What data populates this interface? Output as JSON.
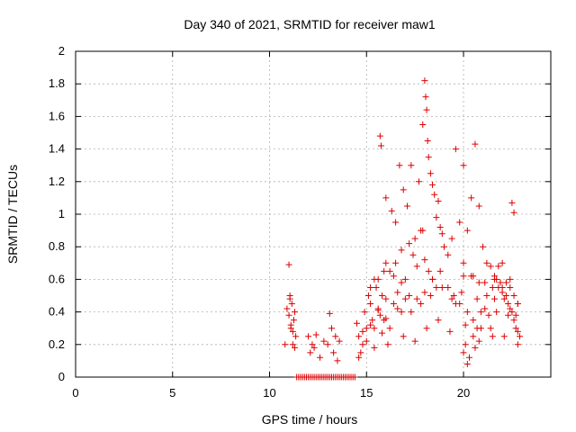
{
  "chart_data": {
    "type": "scatter",
    "title": "Day 340 of 2021, SRMTID for receiver maw1",
    "xlabel": "GPS time / hours",
    "ylabel": "SRMTID / TECUs",
    "xlim": [
      0,
      24.5
    ],
    "ylim": [
      0,
      2
    ],
    "xticks": [
      0,
      5,
      10,
      15,
      20
    ],
    "xtick_labels": [
      "0",
      "5",
      "10",
      "15",
      "20"
    ],
    "yticks": [
      0,
      0.2,
      0.4,
      0.6,
      0.8,
      1,
      1.2,
      1.4,
      1.6,
      1.8,
      2
    ],
    "ytick_labels": [
      "0",
      "0.2",
      "0.4",
      "0.6",
      "0.8",
      "1",
      "1.2",
      "1.4",
      "1.6",
      "1.8",
      "2"
    ],
    "grid": true,
    "marker": "+",
    "color": "#dd0000",
    "series": [
      {
        "name": "maw1",
        "x": [
          10.8,
          10.9,
          11.0,
          11.05,
          11.1,
          11.15,
          11.2,
          11.25,
          11.3,
          11.35,
          11.0,
          11.05,
          11.1,
          11.2,
          11.3,
          11.4,
          11.5,
          11.6,
          11.7,
          11.8,
          11.9,
          12.0,
          12.1,
          12.2,
          12.3,
          12.4,
          12.5,
          12.6,
          12.7,
          12.8,
          12.9,
          13.0,
          13.1,
          13.2,
          13.3,
          13.4,
          13.5,
          13.6,
          13.7,
          13.8,
          13.9,
          14.0,
          14.1,
          14.2,
          14.3,
          14.4,
          12.0,
          12.1,
          12.2,
          12.3,
          12.4,
          12.6,
          12.8,
          13.0,
          13.1,
          13.2,
          13.3,
          13.4,
          13.5,
          13.6,
          14.5,
          14.6,
          14.7,
          14.8,
          14.9,
          15.0,
          15.1,
          15.2,
          15.3,
          15.4,
          15.5,
          15.6,
          15.7,
          15.8,
          15.9,
          16.0,
          14.6,
          14.8,
          15.0,
          15.2,
          15.4,
          15.6,
          15.8,
          16.0,
          16.2,
          16.4,
          16.6,
          16.8,
          17.0,
          15.7,
          15.75,
          16.0,
          16.3,
          16.5,
          16.7,
          16.9,
          17.1,
          17.3,
          17.5,
          17.7,
          17.9,
          17.9,
          18.0,
          18.05,
          18.1,
          18.15,
          18.2,
          18.3,
          18.4,
          18.5,
          18.6,
          18.7,
          18.8,
          18.9,
          19.0,
          16.2,
          16.5,
          16.8,
          17.0,
          17.2,
          17.4,
          17.6,
          17.8,
          18.0,
          18.2,
          18.4,
          18.6,
          19.2,
          19.4,
          19.6,
          19.8,
          20.0,
          20.2,
          20.4,
          20.6,
          20.8,
          21.0,
          21.2,
          21.4,
          21.6,
          21.8,
          19.5,
          19.8,
          20.0,
          20.2,
          20.5,
          20.7,
          20.9,
          21.1,
          21.3,
          21.5,
          20.0,
          20.1,
          20.2,
          20.3,
          20.5,
          20.6,
          20.7,
          20.8,
          21.5,
          21.7,
          21.9,
          22.0,
          22.1,
          22.2,
          22.3,
          22.4,
          22.5,
          22.6,
          22.7,
          22.8,
          22.9,
          21.6,
          21.8,
          22.0,
          22.2,
          22.4,
          22.6,
          22.8,
          22.5,
          22.6,
          22.7,
          22.8,
          15.2,
          15.6,
          16.0,
          16.4,
          16.8,
          17.2,
          17.6,
          18.0,
          18.4,
          18.8,
          19.2,
          19.6,
          20.0,
          20.4,
          20.8,
          21.2,
          21.6,
          22.0,
          22.4,
          22.8,
          15.4,
          15.9,
          16.6,
          17.3,
          17.8,
          18.3,
          18.9,
          19.4,
          19.9,
          20.5,
          21.1,
          21.7,
          22.3,
          16.1,
          16.9,
          17.5,
          18.1,
          18.7,
          19.3,
          20.1,
          20.9,
          21.4,
          22.1
        ],
        "y": [
          0.2,
          0.42,
          0.69,
          0.5,
          0.3,
          0.45,
          0.2,
          0.35,
          0.18,
          0.25,
          0.38,
          0.48,
          0.32,
          0.28,
          0.4,
          0,
          0,
          0,
          0,
          0,
          0,
          0,
          0,
          0,
          0,
          0,
          0,
          0,
          0,
          0,
          0,
          0,
          0,
          0,
          0,
          0,
          0,
          0,
          0,
          0,
          0,
          0,
          0,
          0,
          0,
          0,
          0.25,
          0.15,
          0.2,
          0.18,
          0.26,
          0.12,
          0.22,
          0.2,
          0.39,
          0.3,
          0.15,
          0.25,
          0.1,
          0.22,
          0.33,
          0.25,
          0.15,
          0.2,
          0.4,
          0.3,
          0.5,
          0.45,
          0.35,
          0.6,
          0.55,
          0.42,
          0.38,
          0.5,
          0.65,
          0.48,
          0.12,
          0.28,
          0.22,
          0.32,
          0.18,
          0.41,
          0.27,
          0.36,
          0.3,
          0.45,
          0.52,
          0.4,
          0.48,
          1.48,
          1.42,
          1.1,
          1.02,
          0.95,
          1.3,
          1.15,
          1.05,
          1.3,
          0.85,
          1.2,
          0.9,
          1.55,
          1.82,
          1.72,
          1.64,
          1.45,
          1.35,
          1.25,
          1.18,
          1.12,
          0.98,
          1.08,
          0.92,
          0.88,
          0.8,
          0.65,
          0.7,
          0.78,
          0.6,
          0.82,
          0.75,
          0.68,
          0.9,
          0.72,
          0.65,
          0.6,
          0.55,
          0.75,
          0.85,
          1.4,
          0.95,
          1.3,
          0.9,
          1.1,
          1.43,
          1.05,
          0.8,
          0.7,
          0.68,
          0.6,
          0.55,
          0.5,
          0.45,
          0.62,
          0.4,
          0.35,
          0.48,
          0.3,
          0.42,
          0.38,
          0.25,
          0.15,
          0.2,
          0.08,
          0.12,
          0.25,
          0.18,
          0.3,
          0.22,
          0.55,
          0.6,
          0.58,
          0.52,
          0.48,
          0.5,
          0.45,
          0.42,
          0.4,
          0.35,
          0.3,
          0.28,
          0.25,
          0.62,
          0.68,
          0.7,
          0.58,
          0.55,
          0.5,
          0.45,
          1.07,
          1.01,
          0.38,
          0.2,
          0.55,
          0.6,
          0.7,
          0.62,
          0.58,
          0.5,
          0.48,
          0.52,
          0.6,
          0.65,
          0.55,
          0.45,
          0.7,
          0.62,
          0.58,
          0.5,
          0.48,
          0.55,
          0.6,
          0.45,
          0.3,
          0.35,
          0.42,
          0.4,
          0.45,
          0.5,
          0.55,
          0.48,
          0.52,
          0.62,
          0.58,
          0.4,
          0.38,
          0.2,
          0.25,
          0.22,
          0.3,
          0.35,
          0.28,
          0.32,
          0.4,
          0.3,
          0.25
        ]
      }
    ]
  }
}
